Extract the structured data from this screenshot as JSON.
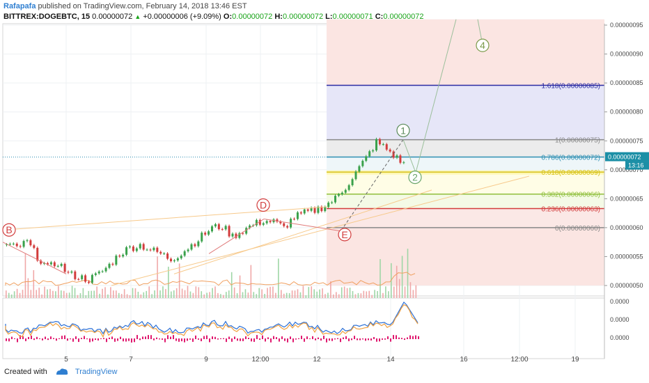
{
  "header": {
    "author": "Rafapafa",
    "published": " published on TradingView.com, February 14, 2018 13:46 EST",
    "symbol": "BITTREX:DOGEBTC, 15",
    "last": "0.00000072",
    "change_arrow": "▲",
    "change": "+0.00000006 (+9.09%)",
    "o_label": "O:",
    "o": "0.00000072",
    "h_label": "H:",
    "h": "0.00000072",
    "l_label": "L:",
    "l": "0.00000071",
    "c_label": "C:",
    "c": "0.00000072"
  },
  "footer": {
    "created_with": "Created with",
    "brand": "TradingView"
  },
  "colors": {
    "up": "#3aa14b",
    "down": "#d23c3c",
    "accent": "#2f7fd1",
    "fib_area": "#f8d7d2"
  },
  "chart_data": {
    "type": "line",
    "price_axis": {
      "ticks": [
        {
          "v": 95,
          "label": "0.00000095"
        },
        {
          "v": 90,
          "label": "0.00000090"
        },
        {
          "v": 85,
          "label": "0.00000085"
        },
        {
          "v": 80,
          "label": "0.00000080"
        },
        {
          "v": 75,
          "label": "0.00000075"
        },
        {
          "v": 70,
          "label": "0.00000070"
        },
        {
          "v": 65,
          "label": "0.00000065"
        },
        {
          "v": 60,
          "label": "0.00000060"
        },
        {
          "v": 55,
          "label": "0.00000055"
        },
        {
          "v": 50,
          "label": "0.00000050"
        }
      ],
      "last_price_label": "0.00000072",
      "countdown": "13:16"
    },
    "x_axis_labels": [
      "5",
      "7",
      "9",
      "12:00",
      "12",
      "14",
      "16",
      "12:00",
      "19"
    ],
    "indicator_axis": [
      "0.0000",
      "0.0000",
      "0.0000"
    ],
    "fib_levels": [
      {
        "ratio": 0,
        "label": "0(0.00000060)",
        "value": 60,
        "color": "#888888"
      },
      {
        "ratio": 0.236,
        "label": "0.236(0.00000063)",
        "value": 63.3,
        "color": "#d23c3c"
      },
      {
        "ratio": 0.382,
        "label": "0.382(0.00000066)",
        "value": 65.8,
        "color": "#8fbf3b"
      },
      {
        "ratio": 0.618,
        "label": "0.618(0.00000069)",
        "value": 69.6,
        "color": "#d6c21c"
      },
      {
        "ratio": 0.786,
        "label": "0.786(0.00000072)",
        "value": 72.2,
        "color": "#2e8fb2"
      },
      {
        "ratio": 1,
        "label": "1(0.00000075)",
        "value": 75.2,
        "color": "#888888"
      },
      {
        "ratio": 1.618,
        "label": "1.618(0.00000085)",
        "value": 84.6,
        "color": "#2b2ba3"
      }
    ],
    "wave_labels": [
      {
        "label": "B",
        "value": 59.6
      },
      {
        "label": "D",
        "value": 63.9
      },
      {
        "label": "E",
        "value": 58.8
      },
      {
        "label": "1",
        "value": 76.8
      },
      {
        "label": "2",
        "value": 68.7
      },
      {
        "label": "4",
        "value": 91.5
      }
    ],
    "price_path": [
      57,
      56.5,
      57.5,
      55,
      53,
      54,
      52,
      51.5,
      51,
      52,
      53.5,
      55.5,
      56.5,
      57,
      56.2,
      55.5,
      54.5,
      55.6,
      57,
      58.5,
      60,
      60.2,
      58.5,
      59.5,
      60.5,
      61.2,
      61,
      60,
      61.8,
      62.5,
      63,
      63.8,
      65,
      67,
      69.5,
      72,
      74.8,
      73.6,
      72,
      70.5
    ]
  }
}
